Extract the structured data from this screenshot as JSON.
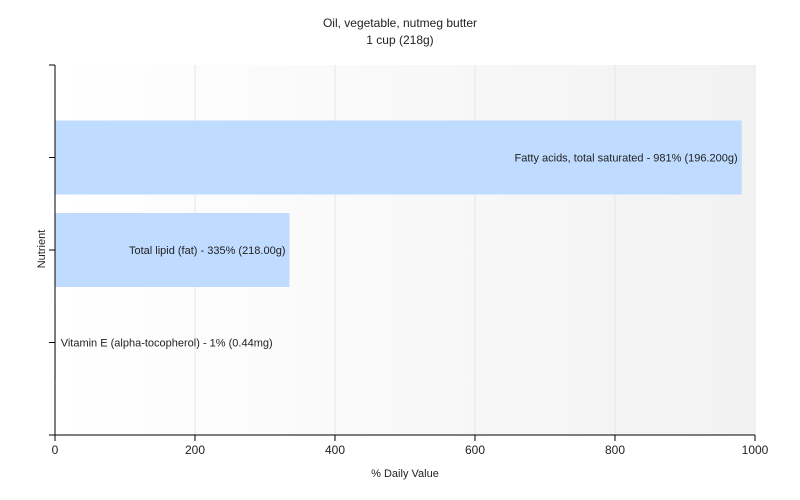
{
  "chart_data": {
    "type": "bar",
    "orientation": "horizontal",
    "title": "Oil, vegetable, nutmeg butter",
    "subtitle": "1 cup (218g)",
    "xlabel": "% Daily Value",
    "ylabel": "Nutrient",
    "xlim": [
      0,
      1000
    ],
    "xticks": [
      0,
      200,
      400,
      600,
      800,
      1000
    ],
    "grid": "vertical",
    "bar_color": "#bfdbff",
    "categories": [
      "Fatty acids, total saturated",
      "Total lipid (fat)",
      "Vitamin E (alpha-tocopherol)"
    ],
    "values": [
      981,
      335,
      1
    ],
    "data_labels": [
      "Fatty acids, total saturated - 981% (196.200g)",
      "Total lipid (fat) - 335% (218.00g)",
      "Vitamin E (alpha-tocopherol) - 1% (0.44mg)"
    ]
  }
}
